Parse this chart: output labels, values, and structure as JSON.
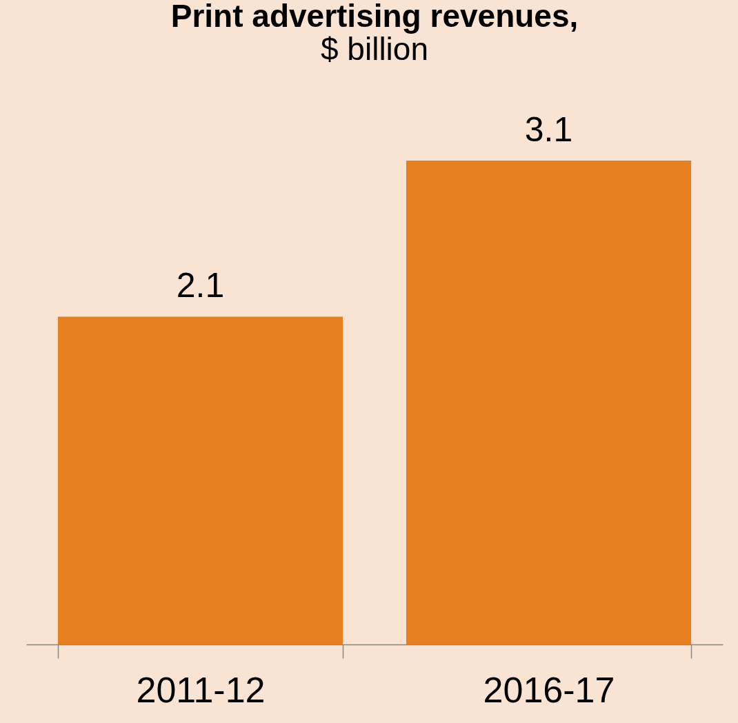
{
  "chart_data": {
    "type": "bar",
    "title": "Print advertising revenues,",
    "subtitle": "$ billion",
    "categories": [
      "2011-12",
      "2016-17"
    ],
    "values": [
      2.1,
      3.1
    ],
    "color": "#e57f20",
    "data_labels": true
  }
}
